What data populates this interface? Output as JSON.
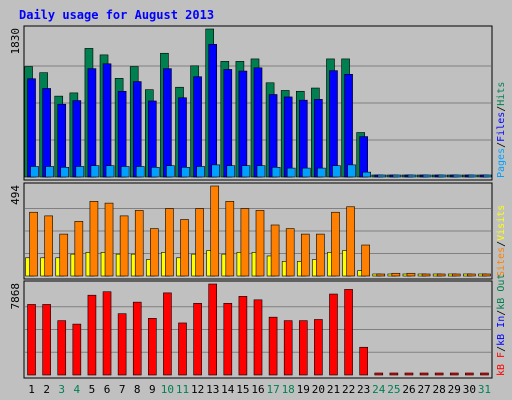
{
  "chart_data": {
    "type": "bar",
    "title": "Daily usage for August 2013",
    "categories": [
      "1",
      "2",
      "3",
      "4",
      "5",
      "6",
      "7",
      "8",
      "9",
      "10",
      "11",
      "12",
      "13",
      "14",
      "15",
      "16",
      "17",
      "18",
      "19",
      "20",
      "21",
      "22",
      "23",
      "24",
      "25",
      "26",
      "27",
      "28",
      "29",
      "30",
      "31"
    ],
    "weekend_days": [
      "3",
      "4",
      "10",
      "11",
      "17",
      "18",
      "24",
      "25",
      "31"
    ],
    "panels": [
      {
        "id": "hits",
        "max_label": "1830",
        "ylim": [
          0,
          1830
        ],
        "side_labels": [
          {
            "text": "Pages",
            "color": "#00a0ff"
          },
          {
            "text": "/",
            "color": "#000000"
          },
          {
            "text": "Files",
            "color": "#0000ff"
          },
          {
            "text": "/",
            "color": "#000000"
          },
          {
            "text": "Hits",
            "color": "#008050"
          }
        ],
        "series": [
          {
            "name": "Hits",
            "color": "#008050",
            "values": [
              1365,
              1290,
              1000,
              1040,
              1590,
              1510,
              1220,
              1365,
              1080,
              1530,
              1110,
              1375,
              1830,
              1430,
              1430,
              1460,
              1165,
              1070,
              1060,
              1100,
              1460,
              1460,
              550,
              0,
              0,
              0,
              0,
              0,
              0,
              0,
              0
            ]
          },
          {
            "name": "Files",
            "color": "#0000ff",
            "values": [
              1215,
              1095,
              900,
              945,
              1340,
              1400,
              1060,
              1180,
              940,
              1340,
              980,
              1240,
              1640,
              1330,
              1310,
              1350,
              1020,
              990,
              950,
              960,
              1315,
              1270,
              500,
              0,
              0,
              0,
              0,
              0,
              0,
              0,
              0
            ]
          },
          {
            "name": "Pages",
            "color": "#00a0ff",
            "values": [
              130,
              130,
              120,
              130,
              140,
              140,
              130,
              130,
              120,
              140,
              120,
              130,
              150,
              140,
              140,
              140,
              120,
              110,
              110,
              110,
              140,
              150,
              60,
              0,
              0,
              0,
              0,
              0,
              0,
              0,
              0
            ]
          }
        ]
      },
      {
        "id": "sites",
        "max_label": "494",
        "ylim": [
          0,
          494
        ],
        "side_labels": [
          {
            "text": "Sites",
            "color": "#ff8000"
          },
          {
            "text": "/",
            "color": "#000000"
          },
          {
            "text": "Visits",
            "color": "#ffff00"
          }
        ],
        "series": [
          {
            "name": "Visits",
            "color": "#ffff00",
            "values": [
              100,
              100,
              100,
              120,
              130,
              130,
              120,
              120,
              90,
              130,
              100,
              120,
              140,
              120,
              130,
              130,
              110,
              80,
              80,
              90,
              130,
              140,
              30,
              0,
              0,
              0,
              0,
              0,
              0,
              0,
              0
            ]
          },
          {
            "name": "Sites",
            "color": "#ff8000",
            "values": [
              350,
              330,
              230,
              300,
              410,
              400,
              330,
              360,
              260,
              370,
              310,
              370,
              494,
              410,
              370,
              360,
              280,
              260,
              230,
              230,
              350,
              380,
              170,
              10,
              15,
              15,
              5,
              10,
              5,
              5,
              5
            ]
          }
        ]
      },
      {
        "id": "kbytes",
        "max_label": "7868",
        "ylim": [
          0,
          7868
        ],
        "side_labels": [
          {
            "text": "kB F",
            "color": "#ff0000"
          },
          {
            "text": "/",
            "color": "#000000"
          },
          {
            "text": "kB In",
            "color": "#0000ff"
          },
          {
            "text": "/",
            "color": "#000000"
          },
          {
            "text": "kB Out",
            "color": "#008050"
          }
        ],
        "series": [
          {
            "name": "kB F",
            "color": "#ff0000",
            "values": [
              6100,
              6100,
              4700,
              4400,
              6900,
              7200,
              5300,
              6300,
              4900,
              7100,
              4500,
              6200,
              7868,
              6200,
              6800,
              6500,
              5000,
              4700,
              4700,
              4800,
              7000,
              7400,
              2400,
              0,
              0,
              0,
              0,
              0,
              0,
              0,
              0
            ]
          }
        ]
      }
    ]
  }
}
